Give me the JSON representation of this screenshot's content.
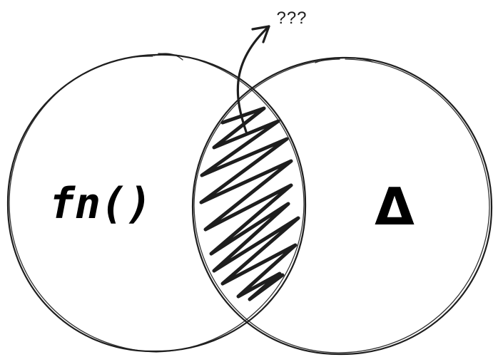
{
  "diagram": {
    "left_set": {
      "label": "fn()"
    },
    "right_set": {
      "label": "Δ"
    },
    "intersection": {
      "annotation": "???"
    }
  },
  "colors": {
    "ink": "#1e1e1e",
    "background": "#ffffff"
  },
  "icons": {
    "intersection_pointer": "curved-arrow-icon"
  }
}
